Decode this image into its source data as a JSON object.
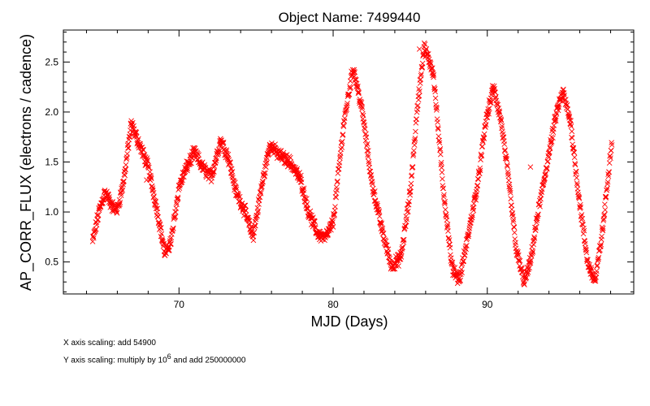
{
  "chart_data": {
    "type": "scatter",
    "title": "Object Name:  7499440",
    "xlabel": "MJD (Days)",
    "ylabel": "AP_CORR_FLUX (electrons / cadence)",
    "xlim": [
      62.5,
      99.5
    ],
    "ylim": [
      0.18,
      2.82
    ],
    "x_ticks": [
      70,
      80,
      90
    ],
    "y_ticks": [
      0.5,
      1.0,
      1.5,
      2.0,
      2.5
    ],
    "x_tick_labels": [
      "70",
      "80",
      "90"
    ],
    "y_tick_labels": [
      "0.5",
      "1.0",
      "1.5",
      "2.0",
      "2.5"
    ],
    "marker": "x",
    "marker_color": "#ff0000",
    "grid": false,
    "x_start": 64.4,
    "x_end": 98.1,
    "envelope": [
      [
        64.4,
        0.7
      ],
      [
        64.8,
        1.0
      ],
      [
        65.2,
        1.2
      ],
      [
        65.7,
        1.05
      ],
      [
        66.0,
        1.02
      ],
      [
        66.4,
        1.3
      ],
      [
        66.9,
        1.88
      ],
      [
        67.5,
        1.65
      ],
      [
        68.0,
        1.45
      ],
      [
        68.6,
        1.0
      ],
      [
        69.1,
        0.57
      ],
      [
        69.5,
        0.72
      ],
      [
        70.0,
        1.25
      ],
      [
        70.5,
        1.45
      ],
      [
        71.0,
        1.6
      ],
      [
        71.5,
        1.45
      ],
      [
        72.1,
        1.35
      ],
      [
        72.7,
        1.72
      ],
      [
        73.2,
        1.55
      ],
      [
        73.7,
        1.2
      ],
      [
        74.3,
        1.0
      ],
      [
        74.8,
        0.75
      ],
      [
        75.3,
        1.2
      ],
      [
        75.9,
        1.68
      ],
      [
        76.4,
        1.58
      ],
      [
        77.2,
        1.5
      ],
      [
        77.9,
        1.32
      ],
      [
        78.4,
        1.0
      ],
      [
        79.0,
        0.78
      ],
      [
        79.5,
        0.74
      ],
      [
        80.0,
        0.9
      ],
      [
        80.7,
        1.9
      ],
      [
        81.3,
        2.45
      ],
      [
        81.9,
        2.0
      ],
      [
        82.5,
        1.3
      ],
      [
        83.2,
        0.8
      ],
      [
        83.8,
        0.45
      ],
      [
        84.4,
        0.55
      ],
      [
        85.0,
        1.2
      ],
      [
        85.5,
        2.1
      ],
      [
        85.9,
        2.65
      ],
      [
        86.5,
        2.4
      ],
      [
        87.1,
        1.3
      ],
      [
        87.7,
        0.45
      ],
      [
        88.2,
        0.32
      ],
      [
        88.8,
        0.8
      ],
      [
        89.4,
        1.3
      ],
      [
        89.9,
        1.9
      ],
      [
        90.4,
        2.25
      ],
      [
        90.9,
        1.9
      ],
      [
        91.4,
        1.3
      ],
      [
        91.9,
        0.6
      ],
      [
        92.4,
        0.3
      ],
      [
        92.8,
        0.5
      ],
      [
        93.3,
        1.0
      ],
      [
        93.9,
        1.5
      ],
      [
        94.5,
        2.0
      ],
      [
        94.9,
        2.2
      ],
      [
        95.4,
        1.9
      ],
      [
        95.9,
        1.2
      ],
      [
        96.5,
        0.5
      ],
      [
        97.0,
        0.3
      ],
      [
        97.5,
        0.85
      ],
      [
        98.1,
        1.75
      ]
    ]
  },
  "notes": {
    "x_scaling": "X axis scaling: add 54900",
    "y_scaling_pre": "Y axis scaling: multiply by 10",
    "y_scaling_exp": "6",
    "y_scaling_post": " and add 250000000"
  }
}
